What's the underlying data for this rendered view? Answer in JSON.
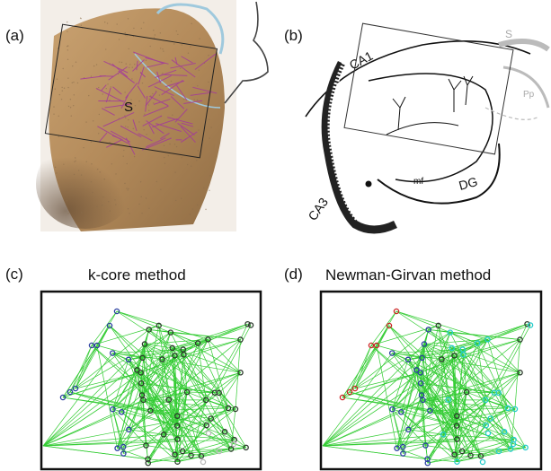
{
  "figure": {
    "panels": [
      {
        "id": "a",
        "label": "(a)",
        "inner_text": "S"
      },
      {
        "id": "b",
        "label": "(b)",
        "region_labels": [
          "CA1",
          "CA3",
          "DG",
          "S",
          "Pp",
          "mf"
        ]
      },
      {
        "id": "c",
        "label": "(c)",
        "title": "k-core method"
      },
      {
        "id": "d",
        "label": "(d)",
        "title": "Newman-Girvan method"
      }
    ],
    "colors": {
      "edges": "#33cc33",
      "node_dark": "#2b3a2b",
      "node_blue": "#2a3fa0",
      "node_red": "#cc2222",
      "node_cyan": "#22cccc",
      "node_light": "#b8b8b8",
      "frame": "#111111"
    }
  }
}
